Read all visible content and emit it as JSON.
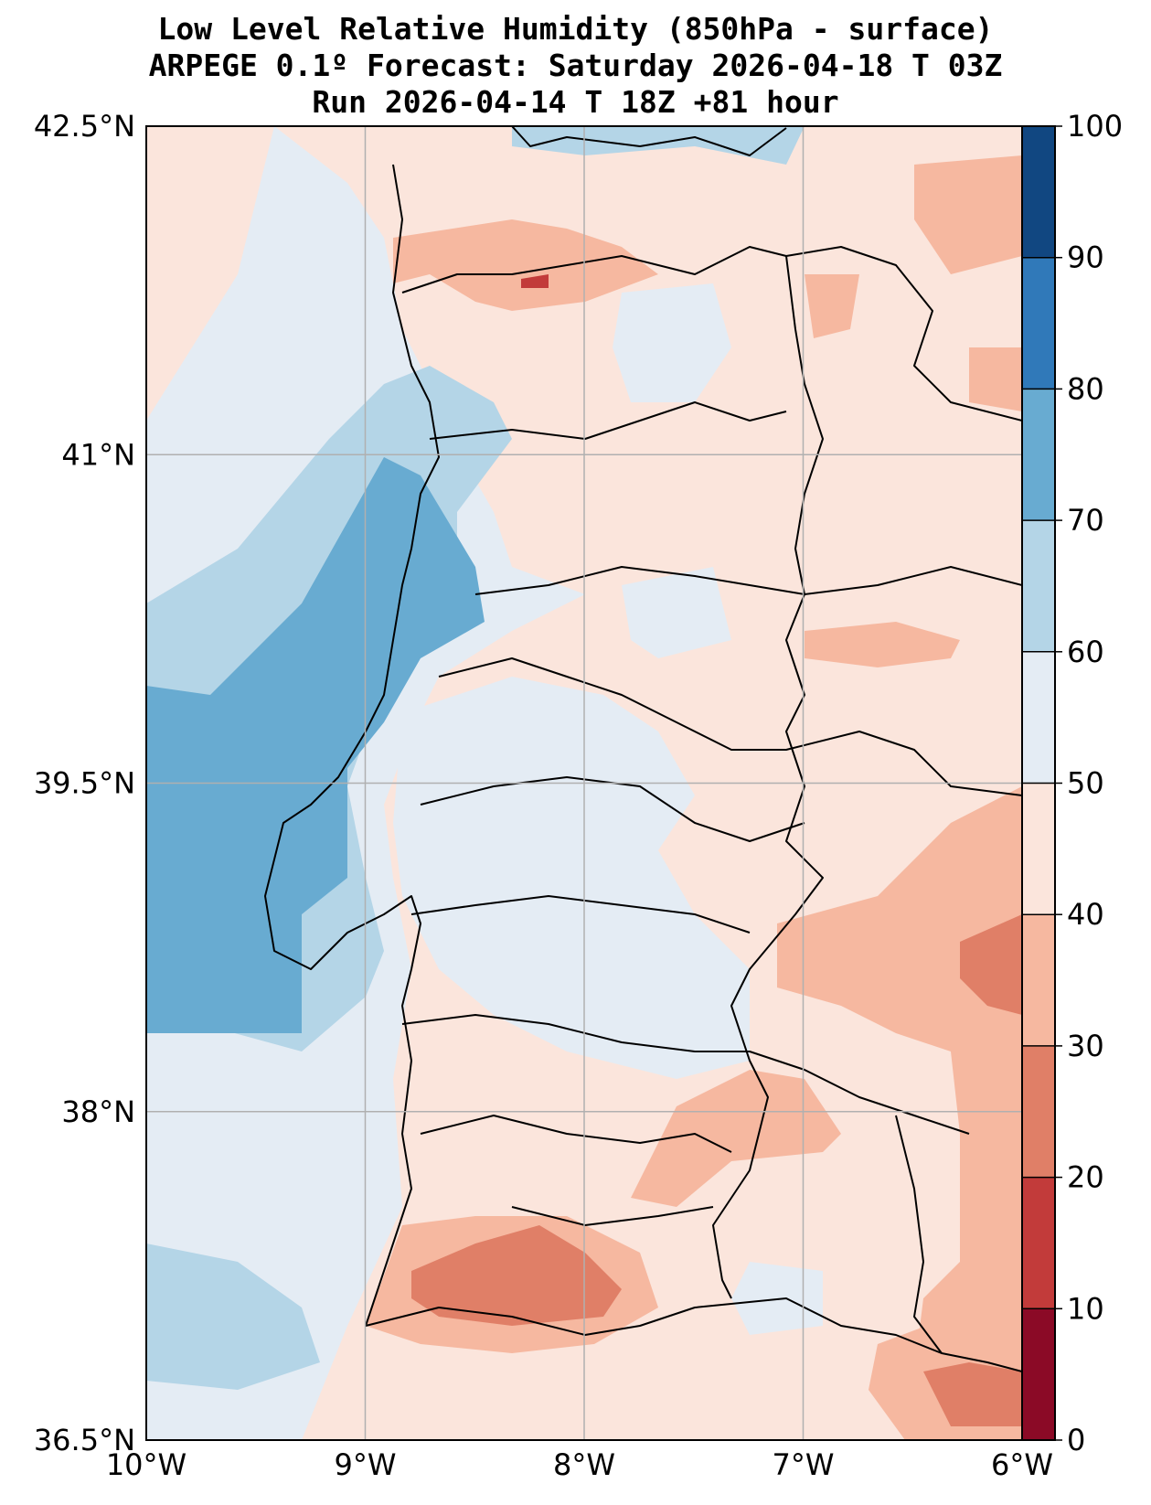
{
  "title": {
    "line1": "Low Level Relative Humidity (850hPa - surface)",
    "line2": "ARPEGE 0.1º Forecast: Saturday 2026-04-18 T 03Z",
    "line3": "Run 2026-04-14 T 18Z +81 hour"
  },
  "map": {
    "lat_range": [
      36.5,
      42.5
    ],
    "lon_range": [
      -10,
      -6
    ],
    "lat_ticks": [
      {
        "value": 42.5,
        "label": "42.5°N"
      },
      {
        "value": 41,
        "label": "41°N"
      },
      {
        "value": 39.5,
        "label": "39.5°N"
      },
      {
        "value": 38,
        "label": "38°N"
      },
      {
        "value": 36.5,
        "label": "36.5°N"
      }
    ],
    "lon_ticks": [
      {
        "value": -10,
        "label": "10°W"
      },
      {
        "value": -9,
        "label": "9°W"
      },
      {
        "value": -8,
        "label": "8°W"
      },
      {
        "value": -7,
        "label": "7°W"
      },
      {
        "value": -6,
        "label": "6°W"
      }
    ]
  },
  "colorbar": {
    "levels": [
      "0",
      "10",
      "20",
      "30",
      "40",
      "50",
      "60",
      "70",
      "80",
      "90",
      "100"
    ],
    "colors": [
      "#8b0a26",
      "#c23b3a",
      "#e07f67",
      "#f6b8a0",
      "#fbe5dc",
      "#e4ecf4",
      "#b4d5e7",
      "#68abd1",
      "#3079b9",
      "#114781"
    ]
  }
}
